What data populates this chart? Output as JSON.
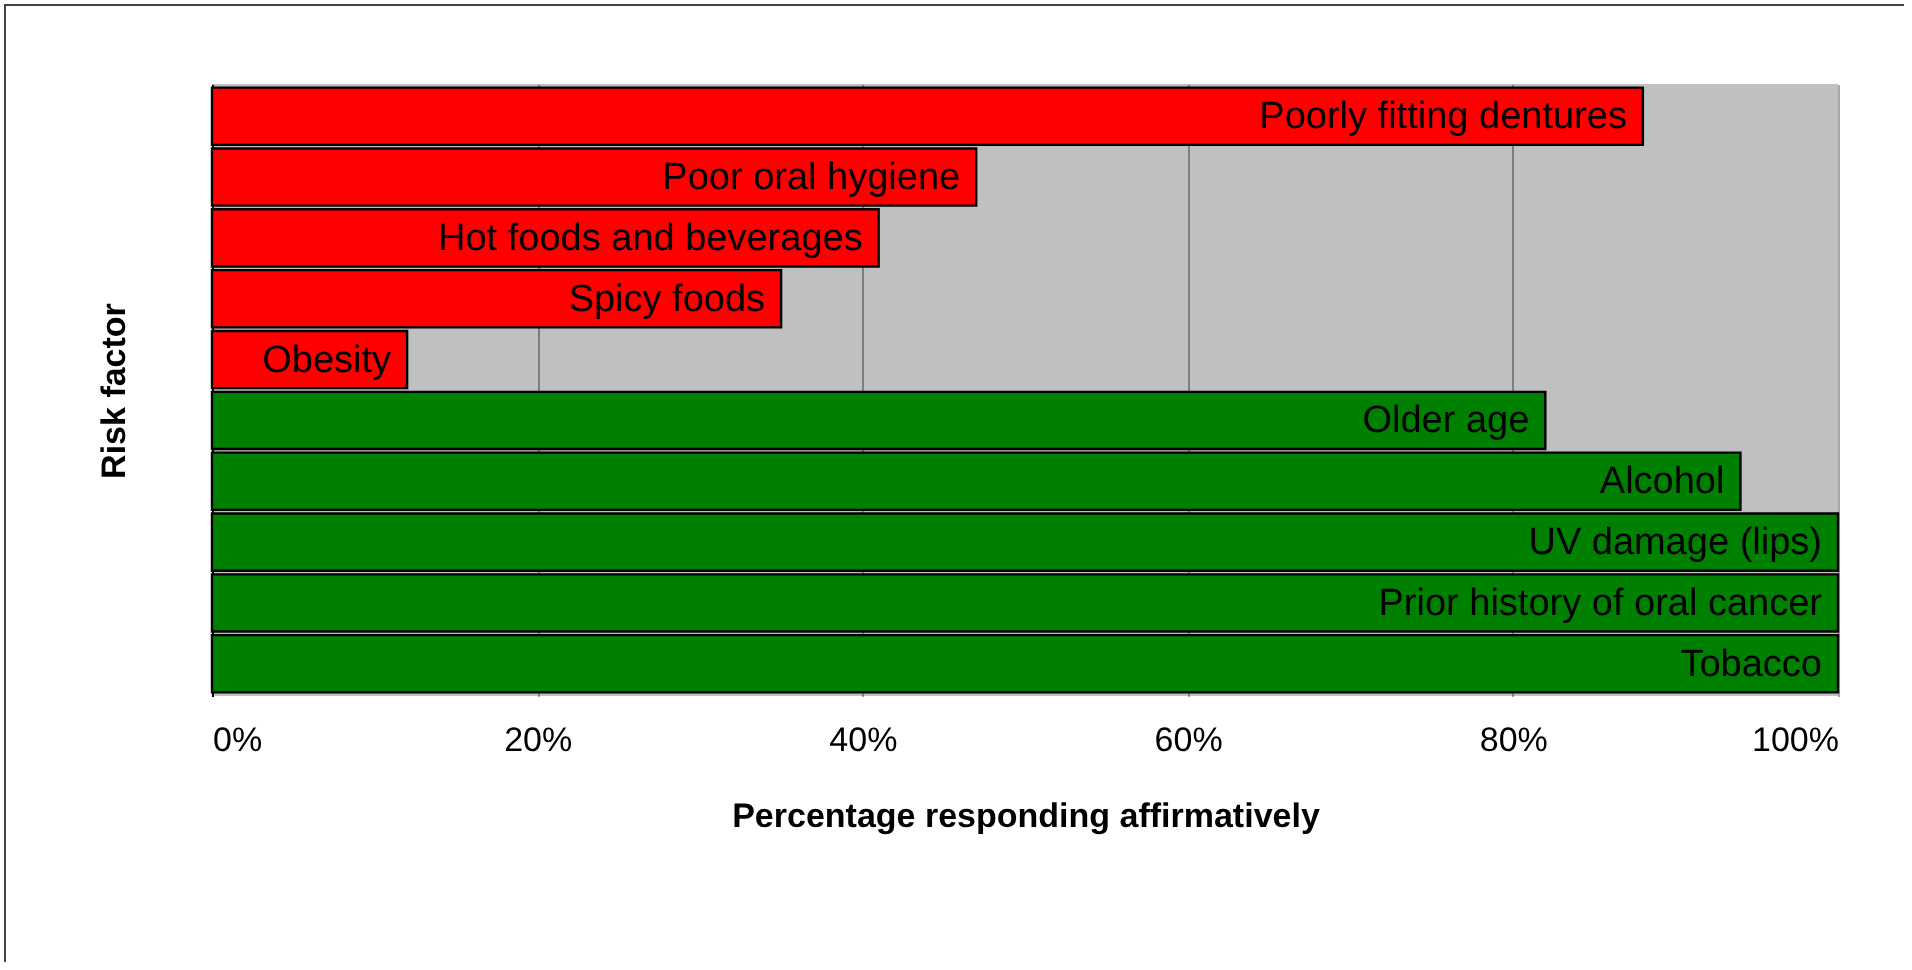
{
  "chart_data": {
    "type": "bar",
    "orientation": "horizontal",
    "xlabel": "Percentage responding affirmatively",
    "ylabel": "Risk factor",
    "categories": [
      "Poorly fitting dentures",
      "Poor oral hygiene",
      "Hot foods and beverages",
      "Spicy foods",
      "Obesity",
      "Older age",
      "Alcohol",
      "UV damage (lips)",
      "Prior history of oral cancer",
      "Tobacco"
    ],
    "values": [
      88,
      47,
      41,
      35,
      12,
      82,
      94,
      100,
      100,
      100
    ],
    "colors": [
      "#ff0000",
      "#ff0000",
      "#ff0000",
      "#ff0000",
      "#ff0000",
      "#008000",
      "#008000",
      "#008000",
      "#008000",
      "#008000"
    ],
    "xlim": [
      0,
      100
    ],
    "xticks": [
      {
        "value": 0,
        "label": "0%"
      },
      {
        "value": 20,
        "label": "20%"
      },
      {
        "value": 40,
        "label": "40%"
      },
      {
        "value": 60,
        "label": "60%"
      },
      {
        "value": 80,
        "label": "80%"
      },
      {
        "value": 100,
        "label": "100%"
      }
    ],
    "grid": "x",
    "tick_labels": "x"
  }
}
